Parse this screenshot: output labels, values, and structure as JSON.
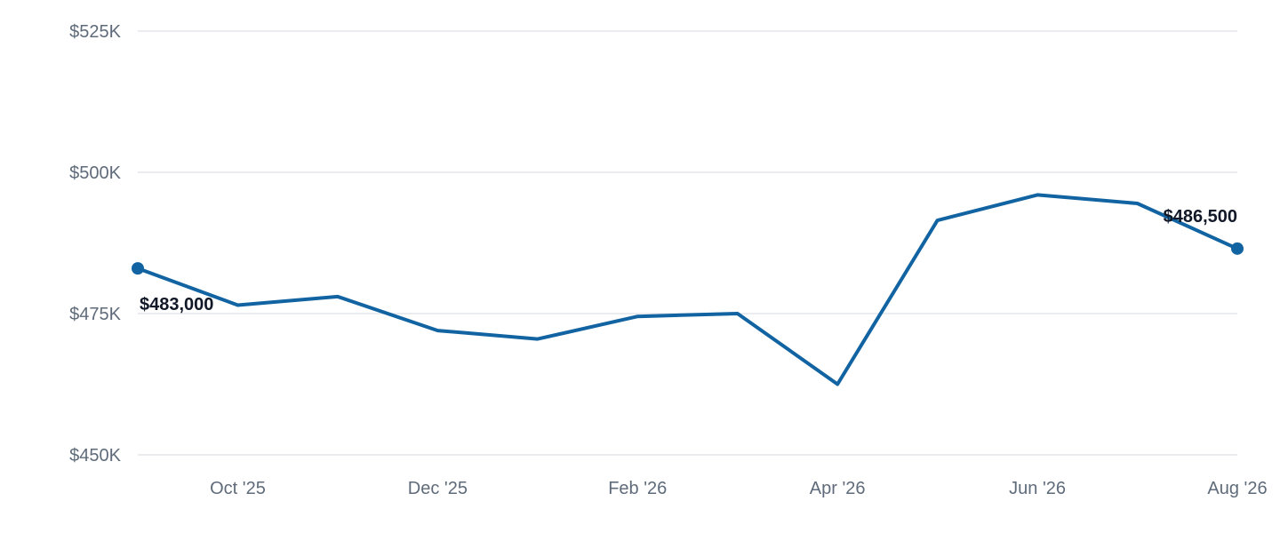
{
  "chart_data": {
    "type": "line",
    "x": [
      "2025-09",
      "2025-10",
      "2025-11",
      "2025-12",
      "2026-01",
      "2026-02",
      "2026-03",
      "2026-04",
      "2026-05",
      "2026-06",
      "2026-07",
      "2026-08"
    ],
    "x_tick_labels": [
      {
        "x": "2025-10",
        "label": "Oct '25"
      },
      {
        "x": "2025-12",
        "label": "Dec '25"
      },
      {
        "x": "2026-02",
        "label": "Feb '26"
      },
      {
        "x": "2026-04",
        "label": "Apr '26"
      },
      {
        "x": "2026-06",
        "label": "Jun '26"
      },
      {
        "x": "2026-08",
        "label": "Aug '26"
      }
    ],
    "y_ticks": [
      {
        "value": 450000,
        "label": "$450K"
      },
      {
        "value": 475000,
        "label": "$475K"
      },
      {
        "value": 500000,
        "label": "$500K"
      },
      {
        "value": 525000,
        "label": "$525K"
      }
    ],
    "ylim": [
      450000,
      525000
    ],
    "grid": "horizontal",
    "series": [
      {
        "values": [
          483000,
          476500,
          478000,
          472000,
          470500,
          474500,
          475000,
          462500,
          491500,
          496000,
          494500,
          486500
        ],
        "color": "#1163a1"
      }
    ],
    "annotations": [
      {
        "x": "2025-09",
        "value": 483000,
        "label": "$483,000"
      },
      {
        "x": "2026-08",
        "value": 486500,
        "label": "$486,500"
      }
    ],
    "title": "",
    "xlabel": "",
    "ylabel": ""
  }
}
